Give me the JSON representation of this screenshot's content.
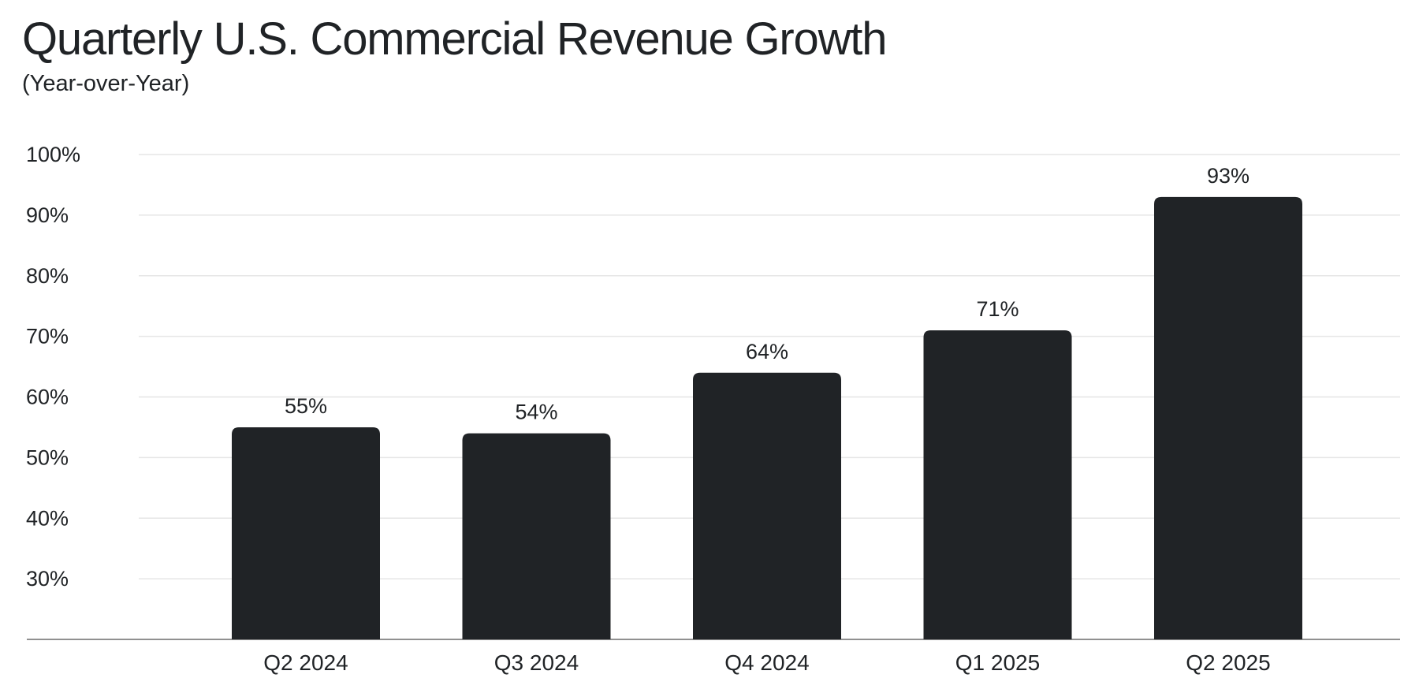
{
  "chart_data": {
    "type": "bar",
    "title": "Quarterly U.S. Commercial Revenue Growth",
    "subtitle": "(Year-over-Year)",
    "categories": [
      "Q2 2024",
      "Q3 2024",
      "Q4 2024",
      "Q1 2025",
      "Q2 2025"
    ],
    "values": [
      55,
      54,
      64,
      71,
      93
    ],
    "data_labels": [
      "55%",
      "54%",
      "64%",
      "71%",
      "93%"
    ],
    "xlabel": "",
    "ylabel": "",
    "ylim": [
      20,
      100
    ],
    "yticks": [
      30,
      40,
      50,
      60,
      70,
      80,
      90,
      100
    ],
    "ytick_labels": [
      "30%",
      "40%",
      "50%",
      "60%",
      "70%",
      "80%",
      "90%",
      "100%"
    ],
    "grid": true,
    "legend": "none",
    "bar_color": "#202326"
  }
}
